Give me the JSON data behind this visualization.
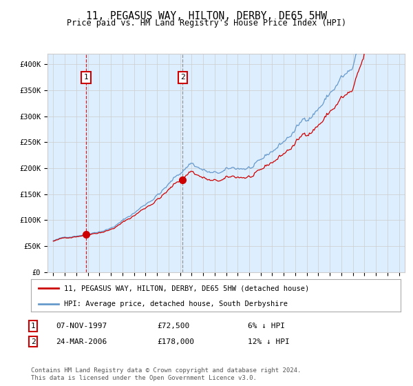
{
  "title": "11, PEGASUS WAY, HILTON, DERBY, DE65 5HW",
  "subtitle": "Price paid vs. HM Land Registry's House Price Index (HPI)",
  "legend_line1": "11, PEGASUS WAY, HILTON, DERBY, DE65 5HW (detached house)",
  "legend_line2": "HPI: Average price, detached house, South Derbyshire",
  "annotation1_date": "07-NOV-1997",
  "annotation1_price": "£72,500",
  "annotation1_hpi": "6% ↓ HPI",
  "annotation2_date": "24-MAR-2006",
  "annotation2_price": "£178,000",
  "annotation2_hpi": "12% ↓ HPI",
  "footnote": "Contains HM Land Registry data © Crown copyright and database right 2024.\nThis data is licensed under the Open Government Licence v3.0.",
  "red_color": "#cc0000",
  "blue_color": "#6699cc",
  "shade_color": "#ddeeff",
  "background_color": "#ffffff",
  "grid_color": "#cccccc",
  "ylim": [
    0,
    420000
  ],
  "yticks": [
    0,
    50000,
    100000,
    150000,
    200000,
    250000,
    300000,
    350000,
    400000
  ],
  "ytick_labels": [
    "£0",
    "£50K",
    "£100K",
    "£150K",
    "£200K",
    "£250K",
    "£300K",
    "£350K",
    "£400K"
  ],
  "purchase1_x": 1997.85,
  "purchase1_y": 72500,
  "purchase2_x": 2006.23,
  "purchase2_y": 178000,
  "xlim": [
    1994.5,
    2025.5
  ]
}
